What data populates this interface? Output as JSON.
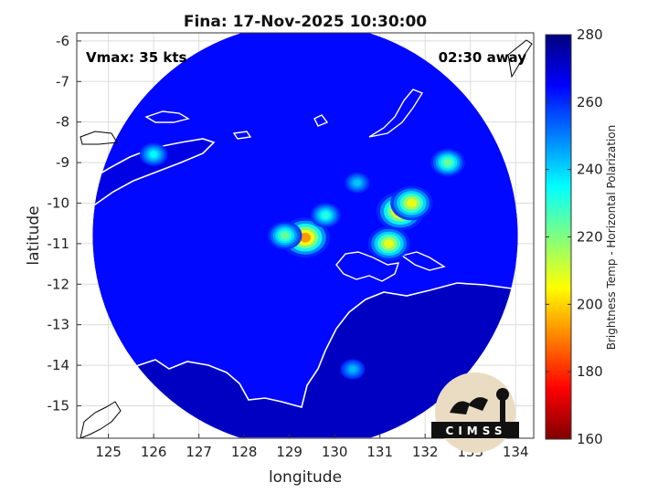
{
  "chart_data": {
    "type": "heatmap",
    "title": "Fina: 17-Nov-2025 10:30:00",
    "xlabel": "longitude",
    "ylabel": "latitude",
    "xlim": [
      124.3,
      134.4
    ],
    "ylim": [
      -15.8,
      -5.8
    ],
    "xticks": [
      125,
      126,
      127,
      128,
      129,
      130,
      131,
      132,
      133,
      134
    ],
    "yticks": [
      -6,
      -7,
      -8,
      -9,
      -10,
      -11,
      -12,
      -13,
      -14,
      -15
    ],
    "grid": true,
    "colorbar": {
      "label": "Brightness Temp - Horizontal Polarization",
      "range": [
        160,
        280
      ],
      "ticks": [
        160,
        180,
        200,
        220,
        240,
        260,
        280
      ],
      "colormap": "jet"
    },
    "annotations": {
      "vmax": "Vmax: 35 kts",
      "time_away": "02:30 away"
    },
    "swath": {
      "center_lon": 129.35,
      "center_lat": -10.8,
      "radius_deg": 4.7,
      "background_value": 264
    },
    "features": [
      {
        "name": "eye-convection",
        "lon": 129.35,
        "lat": -10.85,
        "value": 178
      },
      {
        "name": "east-convection-1",
        "lon": 131.45,
        "lat": -10.2,
        "value": 182
      },
      {
        "name": "east-convection-2",
        "lon": 131.2,
        "lat": -11.0,
        "value": 196
      },
      {
        "name": "east-convection-3",
        "lon": 131.7,
        "lat": -10.0,
        "value": 195
      },
      {
        "name": "west-cell",
        "lon": 128.9,
        "lat": -10.8,
        "value": 215
      },
      {
        "name": "band-north",
        "lon": 129.8,
        "lat": -10.3,
        "value": 225
      },
      {
        "name": "northeast-cell",
        "lon": 132.5,
        "lat": -9.0,
        "value": 215
      },
      {
        "name": "band-outer",
        "lon": 130.5,
        "lat": -9.5,
        "value": 238
      },
      {
        "name": "timor-cell",
        "lon": 126.0,
        "lat": -8.8,
        "value": 230
      },
      {
        "name": "south-cell",
        "lon": 130.4,
        "lat": -14.1,
        "value": 240
      }
    ],
    "land_regions": [
      {
        "name": "australia-north",
        "value": 272
      },
      {
        "name": "timor",
        "value": 268
      }
    ]
  },
  "logo": {
    "text": "CIMSS"
  }
}
